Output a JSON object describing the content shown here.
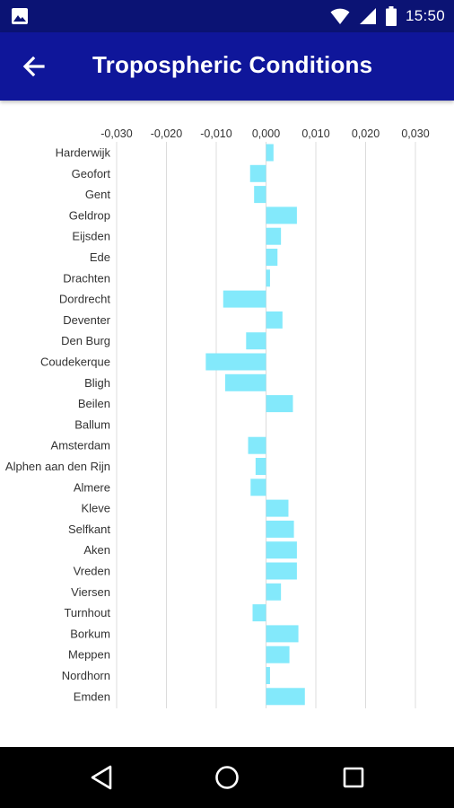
{
  "status_bar": {
    "time": "15:50",
    "icons": [
      "image-notification-icon",
      "wifi-icon",
      "cell-signal-icon",
      "battery-icon"
    ]
  },
  "app_bar": {
    "title": "Tropospheric Conditions",
    "back_icon": "arrow-left-icon"
  },
  "colors": {
    "status_bar": "#0b1374",
    "app_bar": "#0f169a",
    "bar": "#83e9fb",
    "grid": "#dcdcdc",
    "nav_bar": "#000000"
  },
  "chart_data": {
    "type": "bar",
    "orientation": "horizontal",
    "x_ticks": [
      "-0,030",
      "-0,020",
      "-0,010",
      "0,000",
      "0,010",
      "0,020",
      "0,030"
    ],
    "xlim": [
      -0.03,
      0.03
    ],
    "grid": true,
    "axis_position": "top",
    "categories": [
      "Harderwijk",
      "Geofort",
      "Gent",
      "Geldrop",
      "Eijsden",
      "Ede",
      "Drachten",
      "Dordrecht",
      "Deventer",
      "Den Burg",
      "Coudekerque",
      "Bligh",
      "Beilen",
      "Ballum",
      "Amsterdam",
      "Alphen aan den Rijn",
      "Almere",
      "Kleve",
      "Selfkant",
      "Aken",
      "Vreden",
      "Viersen",
      "Turnhout",
      "Borkum",
      "Meppen",
      "Nordhorn",
      "Emden"
    ],
    "values": [
      0.0015,
      -0.0032,
      -0.0024,
      0.0062,
      0.003,
      0.0023,
      0.0008,
      -0.0086,
      0.0033,
      -0.004,
      -0.0121,
      -0.0082,
      0.0054,
      0.0,
      -0.0036,
      -0.0021,
      -0.0031,
      0.0045,
      0.0056,
      0.0062,
      0.0062,
      0.003,
      -0.0027,
      0.0065,
      0.0047,
      0.0008,
      0.0078
    ]
  },
  "nav_bar": {
    "icons": [
      "back-triangle-icon",
      "home-circle-icon",
      "recents-square-icon"
    ]
  }
}
